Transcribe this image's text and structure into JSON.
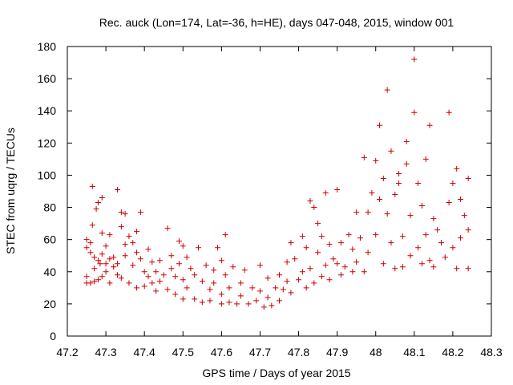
{
  "chart_data": {
    "type": "scatter",
    "title": "Rec. auck (Lon=174, Lat=-36, h=HE), days 047-048, 2015, window 001",
    "xlabel": "GPS time / Days of year 2015",
    "ylabel": "STEC from uqrg / TECUs",
    "xlim": [
      47.2,
      48.3
    ],
    "ylim": [
      0,
      180
    ],
    "xticks": [
      "47.2",
      "47.3",
      "47.4",
      "47.5",
      "47.6",
      "47.7",
      "47.8",
      "47.9",
      "48",
      "48.1",
      "48.2",
      "48.3"
    ],
    "yticks": [
      "0",
      "20",
      "40",
      "60",
      "80",
      "100",
      "120",
      "140",
      "160",
      "180"
    ],
    "grid": false,
    "legend": "none",
    "marker": "+",
    "color": "#cc0000",
    "series": [
      {
        "points": [
          [
            47.25,
            33
          ],
          [
            47.25,
            37
          ],
          [
            47.25,
            55
          ],
          [
            47.25,
            60
          ],
          [
            47.26,
            33
          ],
          [
            47.26,
            52
          ],
          [
            47.26,
            58
          ],
          [
            47.265,
            69
          ],
          [
            47.265,
            93
          ],
          [
            47.27,
            34
          ],
          [
            47.27,
            42
          ],
          [
            47.27,
            49
          ],
          [
            47.275,
            79
          ],
          [
            47.28,
            83
          ],
          [
            47.28,
            35
          ],
          [
            47.28,
            47
          ],
          [
            47.285,
            45
          ],
          [
            47.29,
            86
          ],
          [
            47.29,
            64
          ],
          [
            47.29,
            51
          ],
          [
            47.29,
            37
          ],
          [
            47.3,
            56
          ],
          [
            47.3,
            45
          ],
          [
            47.3,
            40
          ],
          [
            47.31,
            63
          ],
          [
            47.31,
            48
          ],
          [
            47.31,
            33
          ],
          [
            47.32,
            49
          ],
          [
            47.32,
            43
          ],
          [
            47.33,
            91
          ],
          [
            47.33,
            45
          ],
          [
            47.33,
            38
          ],
          [
            47.34,
            77
          ],
          [
            47.34,
            68
          ],
          [
            47.34,
            36
          ],
          [
            47.35,
            76
          ],
          [
            47.35,
            57
          ],
          [
            47.35,
            50
          ],
          [
            47.36,
            62
          ],
          [
            47.36,
            33
          ],
          [
            47.37,
            58
          ],
          [
            47.37,
            44
          ],
          [
            47.38,
            65
          ],
          [
            47.38,
            52
          ],
          [
            47.38,
            30
          ],
          [
            47.39,
            77
          ],
          [
            47.39,
            48
          ],
          [
            47.4,
            40
          ],
          [
            47.4,
            31
          ],
          [
            47.41,
            54
          ],
          [
            47.41,
            37
          ],
          [
            47.42,
            46
          ],
          [
            47.42,
            33
          ],
          [
            47.43,
            40
          ],
          [
            47.43,
            28
          ],
          [
            47.44,
            47
          ],
          [
            47.44,
            34
          ],
          [
            47.45,
            38
          ],
          [
            47.46,
            67
          ],
          [
            47.46,
            29
          ],
          [
            47.47,
            50
          ],
          [
            47.47,
            42
          ],
          [
            47.48,
            37
          ],
          [
            47.48,
            26
          ],
          [
            47.49,
            59
          ],
          [
            47.49,
            45
          ],
          [
            47.5,
            56
          ],
          [
            47.5,
            35
          ],
          [
            47.5,
            23
          ],
          [
            47.51,
            49
          ],
          [
            47.51,
            30
          ],
          [
            47.52,
            42
          ],
          [
            47.53,
            38
          ],
          [
            47.53,
            23
          ],
          [
            47.54,
            55
          ],
          [
            47.55,
            34
          ],
          [
            47.55,
            21
          ],
          [
            47.56,
            44
          ],
          [
            47.57,
            29
          ],
          [
            47.57,
            22
          ],
          [
            47.58,
            41
          ],
          [
            47.58,
            33
          ],
          [
            47.59,
            55
          ],
          [
            47.6,
            47
          ],
          [
            47.6,
            26
          ],
          [
            47.6,
            20
          ],
          [
            47.61,
            63
          ],
          [
            47.61,
            38
          ],
          [
            47.62,
            30
          ],
          [
            47.62,
            21
          ],
          [
            47.63,
            43
          ],
          [
            47.64,
            20
          ],
          [
            47.65,
            33
          ],
          [
            47.65,
            25
          ],
          [
            47.66,
            41
          ],
          [
            47.67,
            20
          ],
          [
            47.68,
            30
          ],
          [
            47.69,
            22
          ],
          [
            47.7,
            44
          ],
          [
            47.7,
            28
          ],
          [
            47.71,
            18
          ],
          [
            47.72,
            24
          ],
          [
            47.72,
            36
          ],
          [
            47.73,
            19
          ],
          [
            47.74,
            30
          ],
          [
            47.75,
            38
          ],
          [
            47.75,
            22
          ],
          [
            47.76,
            29
          ],
          [
            47.77,
            46
          ],
          [
            47.77,
            34
          ],
          [
            47.78,
            58
          ],
          [
            47.78,
            27
          ],
          [
            47.79,
            48
          ],
          [
            47.8,
            35
          ],
          [
            47.81,
            62
          ],
          [
            47.81,
            40
          ],
          [
            47.82,
            55
          ],
          [
            47.82,
            30
          ],
          [
            47.83,
            84
          ],
          [
            47.83,
            42
          ],
          [
            47.84,
            80
          ],
          [
            47.84,
            33
          ],
          [
            47.85,
            70
          ],
          [
            47.85,
            52
          ],
          [
            47.86,
            62
          ],
          [
            47.86,
            37
          ],
          [
            47.87,
            89
          ],
          [
            47.87,
            44
          ],
          [
            47.88,
            57
          ],
          [
            47.88,
            35
          ],
          [
            47.89,
            48
          ],
          [
            47.9,
            91
          ],
          [
            47.9,
            45
          ],
          [
            47.91,
            58
          ],
          [
            47.91,
            38
          ],
          [
            47.92,
            43
          ],
          [
            47.93,
            63
          ],
          [
            47.94,
            54
          ],
          [
            47.94,
            40
          ],
          [
            47.95,
            77
          ],
          [
            47.95,
            46
          ],
          [
            47.96,
            61
          ],
          [
            47.97,
            111
          ],
          [
            47.97,
            40
          ],
          [
            47.98,
            77
          ],
          [
            47.98,
            52
          ],
          [
            47.99,
            89
          ],
          [
            48.0,
            109
          ],
          [
            48.0,
            63
          ],
          [
            48.01,
            131
          ],
          [
            48.01,
            85
          ],
          [
            48.02,
            98
          ],
          [
            48.02,
            45
          ],
          [
            48.03,
            153
          ],
          [
            48.03,
            76
          ],
          [
            48.04,
            115
          ],
          [
            48.04,
            58
          ],
          [
            48.05,
            88
          ],
          [
            48.05,
            42
          ],
          [
            48.06,
            101
          ],
          [
            48.06,
            95
          ],
          [
            48.07,
            62
          ],
          [
            48.07,
            43
          ],
          [
            48.08,
            121
          ],
          [
            48.08,
            107
          ],
          [
            48.09,
            75
          ],
          [
            48.09,
            50
          ],
          [
            48.1,
            172
          ],
          [
            48.1,
            139
          ],
          [
            48.11,
            95
          ],
          [
            48.11,
            55
          ],
          [
            48.12,
            81
          ],
          [
            48.12,
            45
          ],
          [
            48.13,
            110
          ],
          [
            48.13,
            63
          ],
          [
            48.14,
            131
          ],
          [
            48.14,
            47
          ],
          [
            48.15,
            73
          ],
          [
            48.15,
            43
          ],
          [
            48.16,
            66
          ],
          [
            48.17,
            58
          ],
          [
            48.18,
            49
          ],
          [
            48.19,
            83
          ],
          [
            48.19,
            139
          ],
          [
            48.2,
            95
          ],
          [
            48.2,
            55
          ],
          [
            48.21,
            104
          ],
          [
            48.21,
            42
          ],
          [
            48.22,
            85
          ],
          [
            48.22,
            61
          ],
          [
            48.23,
            75
          ],
          [
            48.24,
            98
          ],
          [
            48.24,
            66
          ],
          [
            48.24,
            42
          ]
        ]
      }
    ]
  }
}
